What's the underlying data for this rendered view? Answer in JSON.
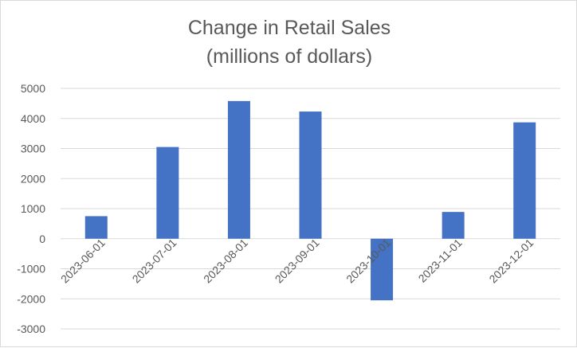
{
  "chart_data": {
    "type": "bar",
    "title": "Change in Retail Sales",
    "subtitle": "(millions of dollars)",
    "xlabel": "",
    "ylabel": "",
    "categories": [
      "2023-06-01",
      "2023-07-01",
      "2023-08-01",
      "2023-09-01",
      "2023-10-01",
      "2023-11-01",
      "2023-12-01"
    ],
    "series": [
      {
        "values": [
          750,
          3050,
          4580,
          4230,
          -2050,
          890,
          3870
        ]
      }
    ],
    "ylim": [
      -3000,
      5000
    ],
    "yticks": [
      "5000",
      "4000",
      "3000",
      "2000",
      "1000",
      "0",
      "-1000",
      "-2000",
      "-3000"
    ],
    "grid": "horizontal",
    "legend": "none",
    "bar_color": "#4472c4",
    "grid_color": "#d9d9d9",
    "text_color": "#595959"
  }
}
